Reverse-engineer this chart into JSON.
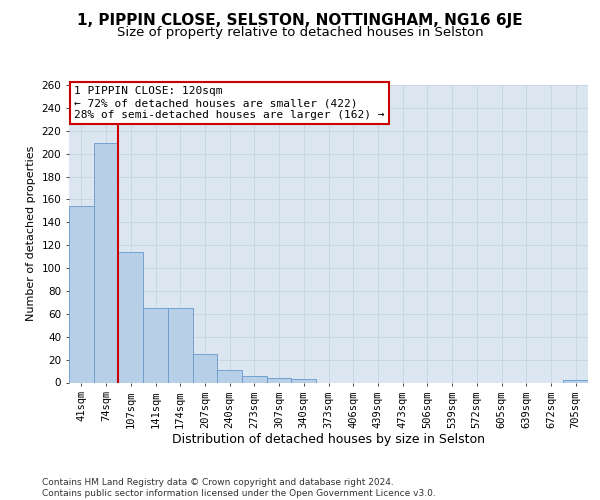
{
  "title": "1, PIPPIN CLOSE, SELSTON, NOTTINGHAM, NG16 6JE",
  "subtitle": "Size of property relative to detached houses in Selston",
  "xlabel": "Distribution of detached houses by size in Selston",
  "ylabel": "Number of detached properties",
  "categories": [
    "41sqm",
    "74sqm",
    "107sqm",
    "141sqm",
    "174sqm",
    "207sqm",
    "240sqm",
    "273sqm",
    "307sqm",
    "340sqm",
    "373sqm",
    "406sqm",
    "439sqm",
    "473sqm",
    "506sqm",
    "539sqm",
    "572sqm",
    "605sqm",
    "639sqm",
    "672sqm",
    "705sqm"
  ],
  "values": [
    154,
    209,
    114,
    65,
    65,
    25,
    11,
    6,
    4,
    3,
    0,
    0,
    0,
    0,
    0,
    0,
    0,
    0,
    0,
    0,
    2
  ],
  "bar_color": "#b8cfe8",
  "bar_edge_color": "#6699cc",
  "red_line_index": 1.5,
  "annotation_line1": "1 PIPPIN CLOSE: 120sqm",
  "annotation_line2": "← 72% of detached houses are smaller (422)",
  "annotation_line3": "28% of semi-detached houses are larger (162) →",
  "annotation_box_facecolor": "#ffffff",
  "annotation_box_edgecolor": "#cc0000",
  "ylim": [
    0,
    260
  ],
  "yticks": [
    0,
    20,
    40,
    60,
    80,
    100,
    120,
    140,
    160,
    180,
    200,
    220,
    240,
    260
  ],
  "grid_color": "#c8d4e4",
  "background_color": "#dce6f0",
  "footer_line1": "Contains HM Land Registry data © Crown copyright and database right 2024.",
  "footer_line2": "Contains public sector information licensed under the Open Government Licence v3.0.",
  "title_fontsize": 11,
  "subtitle_fontsize": 9.5,
  "xlabel_fontsize": 9,
  "ylabel_fontsize": 8,
  "tick_fontsize": 7.5,
  "annot_fontsize": 8,
  "footer_fontsize": 6.5
}
